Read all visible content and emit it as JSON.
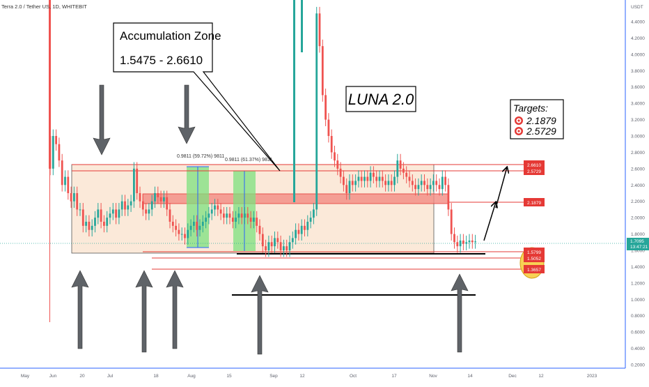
{
  "header": {
    "symbol": "Terra 2.0 / Tether US, 1D, WHITEBIT"
  },
  "price_axis": {
    "currency": "USDT",
    "ticks": [
      "4.4000",
      "4.2000",
      "4.0000",
      "3.8000",
      "3.6000",
      "3.4000",
      "3.2000",
      "3.0000",
      "2.8000",
      "2.6000",
      "2.4000",
      "2.2000",
      "2.0000",
      "1.8000",
      "1.6000",
      "1.4000",
      "1.2000",
      "1.0000",
      "0.8000",
      "0.6000",
      "0.4000",
      "0.2000"
    ],
    "current_price": "1.7095",
    "countdown": "13:47:21"
  },
  "time_axis": {
    "labels": [
      "May",
      "Jun",
      "20",
      "Jul",
      "18",
      "Aug",
      "15",
      "Sep",
      "12",
      "Oct",
      "17",
      "Nov",
      "14",
      "Dec",
      "12",
      "2023"
    ]
  },
  "annotations": {
    "zone_title": "Accumulation Zone",
    "zone_range": "1.5475 - 2.6610",
    "big_title": "LUNA 2.0",
    "targets_title": "Targets:",
    "targets": [
      "2.1879",
      "2.5729"
    ],
    "measure_1": "0.9811 (59.72%) 9811",
    "measure_2": "0.9811 (61.37%) 9811"
  },
  "level_labels": [
    "2.6610",
    "2.5729",
    "2.1879",
    "1.5799",
    "1.5052",
    "1.3657"
  ],
  "colors": {
    "up": "#26a69a",
    "down": "#ef5350",
    "level": "#e53935",
    "zone_fill": "#fbe9d9",
    "resistance_fill": "#f28b82",
    "measure_fill": "#7ee07e",
    "arrow": "#5f6368",
    "ellipse": "#f7d154",
    "axis_text": "#5d606b"
  },
  "chart_data": {
    "type": "candlestick",
    "title": "Terra 2.0 / Tether US, 1D, WHITEBIT",
    "x": [
      "May",
      "Jun",
      "20",
      "Jul",
      "18",
      "Aug",
      "15",
      "Sep",
      "12",
      "Oct",
      "17",
      "Nov",
      "14",
      "Dec",
      "12",
      "2023"
    ],
    "ylim": [
      0.2,
      4.5
    ],
    "y_scale": "linear",
    "grid": false,
    "last_close": 1.7095,
    "horizontal_levels": [
      2.661,
      2.5729,
      2.1879,
      1.5799,
      1.5052,
      1.3657
    ],
    "zones": [
      {
        "name": "Accumulation Zone",
        "low": 1.5475,
        "high": 2.661
      },
      {
        "low": 2.17,
        "high": 2.28
      }
    ],
    "measurements": [
      {
        "label": "0.9811 (59.72%) 9811",
        "low": 1.64,
        "high": 2.62
      },
      {
        "label": "0.9811 (61.37%) 9811",
        "low": 1.6,
        "high": 2.58
      }
    ],
    "targets": [
      2.1879,
      2.5729
    ],
    "approx_closes": [
      [
        0,
        2.6
      ],
      [
        1,
        3.0
      ],
      [
        2,
        2.9
      ],
      [
        3,
        2.7
      ],
      [
        4,
        2.4
      ],
      [
        5,
        2.5
      ],
      [
        6,
        2.3
      ],
      [
        7,
        2.2
      ],
      [
        8,
        2.3
      ],
      [
        9,
        2.1
      ],
      [
        10,
        2.1
      ],
      [
        11,
        1.9
      ],
      [
        12,
        1.95
      ],
      [
        13,
        1.85
      ],
      [
        14,
        1.9
      ],
      [
        15,
        2.0
      ],
      [
        16,
        2.1
      ],
      [
        17,
        1.95
      ],
      [
        18,
        1.9
      ],
      [
        19,
        2.0
      ],
      [
        20,
        2.05
      ],
      [
        21,
        2.1
      ],
      [
        22,
        2.0
      ],
      [
        23,
        2.1
      ],
      [
        24,
        2.2
      ],
      [
        25,
        2.1
      ],
      [
        26,
        2.15
      ],
      [
        27,
        2.2
      ],
      [
        28,
        2.6
      ],
      [
        29,
        2.3
      ],
      [
        30,
        2.2
      ],
      [
        31,
        2.1
      ],
      [
        32,
        2.05
      ],
      [
        33,
        2.1
      ],
      [
        34,
        2.2
      ],
      [
        35,
        2.3
      ],
      [
        36,
        2.25
      ],
      [
        37,
        2.2
      ],
      [
        38,
        2.25
      ],
      [
        39,
        2.1
      ],
      [
        40,
        1.95
      ],
      [
        41,
        1.9
      ],
      [
        42,
        1.85
      ],
      [
        43,
        1.8
      ],
      [
        44,
        1.8
      ],
      [
        45,
        1.75
      ],
      [
        46,
        1.85
      ],
      [
        47,
        1.9
      ],
      [
        48,
        1.95
      ],
      [
        49,
        1.85
      ],
      [
        50,
        1.9
      ],
      [
        51,
        1.95
      ],
      [
        52,
        2.0
      ],
      [
        53,
        2.05
      ],
      [
        54,
        2.1
      ],
      [
        55,
        2.15
      ],
      [
        56,
        2.1
      ],
      [
        57,
        2.05
      ],
      [
        58,
        2.0
      ],
      [
        59,
        2.05
      ],
      [
        60,
        2.0
      ],
      [
        61,
        1.95
      ],
      [
        62,
        2.0
      ],
      [
        63,
        2.05
      ],
      [
        64,
        2.0
      ],
      [
        65,
        2.05
      ],
      [
        66,
        2.0
      ],
      [
        67,
        1.95
      ],
      [
        68,
        2.0
      ],
      [
        69,
        1.9
      ],
      [
        70,
        1.8
      ],
      [
        71,
        1.65
      ],
      [
        72,
        1.6
      ],
      [
        73,
        1.7
      ],
      [
        74,
        1.65
      ],
      [
        75,
        1.75
      ],
      [
        76,
        1.7
      ],
      [
        77,
        1.6
      ],
      [
        78,
        1.65
      ],
      [
        79,
        1.6
      ],
      [
        80,
        1.7
      ],
      [
        81,
        1.75
      ],
      [
        82,
        1.85
      ],
      [
        83,
        1.8
      ],
      [
        84,
        1.9
      ],
      [
        85,
        1.85
      ],
      [
        86,
        1.95
      ],
      [
        87,
        2.0
      ],
      [
        88,
        2.1
      ],
      [
        89,
        4.5
      ],
      [
        90,
        4.1
      ],
      [
        91,
        3.5
      ],
      [
        92,
        3.2
      ],
      [
        93,
        3.0
      ],
      [
        94,
        2.8
      ],
      [
        95,
        2.7
      ],
      [
        96,
        2.6
      ],
      [
        97,
        2.5
      ],
      [
        98,
        2.4
      ],
      [
        99,
        2.3
      ],
      [
        100,
        2.45
      ],
      [
        101,
        2.4
      ],
      [
        102,
        2.45
      ],
      [
        103,
        2.5
      ],
      [
        104,
        2.45
      ],
      [
        105,
        2.5
      ],
      [
        106,
        2.45
      ],
      [
        107,
        2.55
      ],
      [
        108,
        2.5
      ],
      [
        109,
        2.45
      ],
      [
        110,
        2.5
      ],
      [
        111,
        2.45
      ],
      [
        112,
        2.4
      ],
      [
        113,
        2.45
      ],
      [
        114,
        2.4
      ],
      [
        115,
        2.5
      ],
      [
        116,
        2.7
      ],
      [
        117,
        2.6
      ],
      [
        118,
        2.55
      ],
      [
        119,
        2.5
      ],
      [
        120,
        2.45
      ],
      [
        121,
        2.4
      ],
      [
        122,
        2.35
      ],
      [
        123,
        2.4
      ],
      [
        124,
        2.45
      ],
      [
        125,
        2.4
      ],
      [
        126,
        2.35
      ],
      [
        127,
        2.4
      ],
      [
        128,
        2.45
      ],
      [
        129,
        2.4
      ],
      [
        130,
        2.35
      ],
      [
        131,
        2.5
      ],
      [
        132,
        2.4
      ],
      [
        133,
        2.1
      ],
      [
        134,
        1.8
      ],
      [
        135,
        1.7
      ],
      [
        136,
        1.65
      ],
      [
        137,
        1.72
      ],
      [
        138,
        1.68
      ],
      [
        139,
        1.7
      ],
      [
        140,
        1.72
      ],
      [
        141,
        1.7
      ],
      [
        142,
        1.7095
      ]
    ]
  }
}
